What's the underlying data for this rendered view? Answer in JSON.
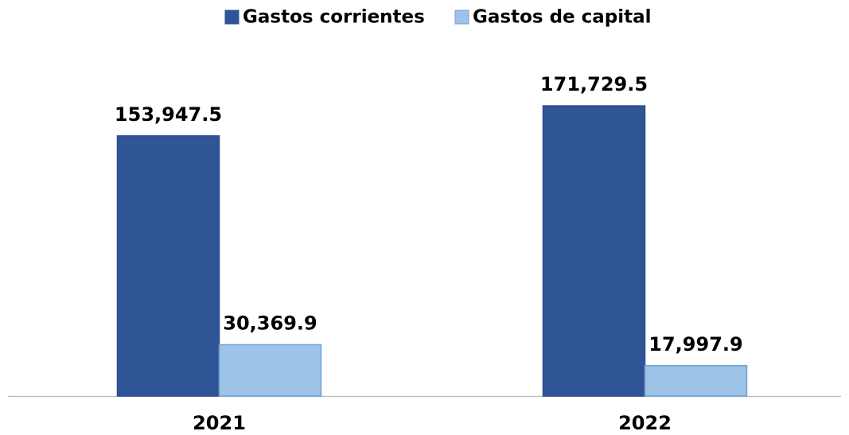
{
  "chart_data": {
    "type": "bar",
    "categories": [
      "2021",
      "2022"
    ],
    "series": [
      {
        "name": "Gastos corrientes",
        "color": "#2f5597",
        "values": [
          153947.5,
          171729.5
        ],
        "value_labels": [
          "153,947.5",
          "171,729.5"
        ]
      },
      {
        "name": "Gastos de capital",
        "color": "#9dc3e6",
        "values": [
          30369.9,
          17997.9
        ],
        "value_labels": [
          "30,369.9",
          "17,997.9"
        ]
      }
    ],
    "ylim": [
      0,
      200000
    ]
  }
}
